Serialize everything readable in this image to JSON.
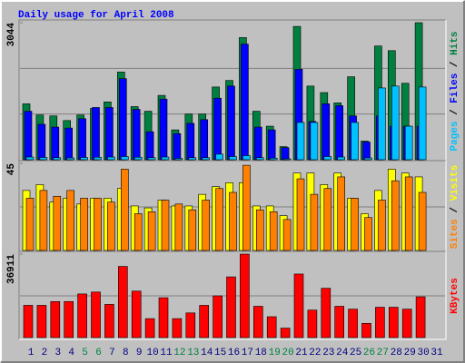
{
  "chart_data": [
    {
      "type": "bar",
      "title": "Daily usage for April 2008",
      "ylim": [
        0,
        3044
      ],
      "yticks": [
        3044
      ],
      "legend_separator": " / ",
      "series": [
        {
          "name": "Hits",
          "color": "#008040",
          "values": [
            1242,
            994,
            973,
            870,
            994,
            1139,
            1284,
            1947,
            1180,
            1077,
            1429,
            663,
            1015,
            1015,
            1615,
            1760,
            2713,
            1077,
            745,
            290,
            2961,
            1636,
            1491,
            1263,
            1843,
            414,
            2526,
            2423,
            1698,
            3044,
            null
          ]
        },
        {
          "name": "Files",
          "color": "#0000ff",
          "values": [
            1077,
            787,
            725,
            704,
            911,
            1160,
            1160,
            1801,
            1118,
            621,
            1346,
            580,
            808,
            890,
            1367,
            1636,
            2568,
            725,
            663,
            269,
            2009,
            849,
            1242,
            1201,
            973,
            393,
            973,
            745,
            745,
            745,
            null
          ]
        },
        {
          "name": "Pages",
          "color": "#00c0ff",
          "values": [
            60,
            50,
            45,
            40,
            50,
            55,
            60,
            70,
            55,
            45,
            60,
            30,
            45,
            45,
            124,
            70,
            90,
            45,
            35,
            20,
            828,
            828,
            70,
            60,
            828,
            40,
            1594,
            1636,
            745,
            1615,
            null
          ]
        }
      ]
    },
    {
      "type": "bar",
      "ylim": [
        0,
        45
      ],
      "yticks": [
        45
      ],
      "legend_separator": " / ",
      "series": [
        {
          "name": "Visits",
          "color": "#ffff00",
          "values": [
            31,
            34,
            25,
            27,
            24,
            27,
            27,
            32,
            23,
            22,
            26,
            23,
            23,
            29,
            33,
            35,
            35,
            23,
            23,
            18,
            40,
            40,
            34,
            40,
            27,
            19,
            31,
            42,
            40,
            38,
            null
          ]
        },
        {
          "name": "Sites",
          "color": "#ff8000",
          "values": [
            27,
            31,
            28,
            31,
            27,
            27,
            25,
            42,
            19,
            20,
            26,
            24,
            21,
            26,
            32,
            30,
            44,
            21,
            20,
            16,
            37,
            29,
            32,
            38,
            27,
            17,
            26,
            36,
            38,
            30,
            null
          ]
        }
      ]
    },
    {
      "type": "bar",
      "ylim": [
        0,
        36911
      ],
      "yticks": [
        36911
      ],
      "categories": [
        "1",
        "2",
        "3",
        "4",
        "5",
        "6",
        "7",
        "8",
        "9",
        "10",
        "11",
        "12",
        "13",
        "14",
        "15",
        "16",
        "17",
        "18",
        "19",
        "20",
        "21",
        "22",
        "23",
        "24",
        "25",
        "26",
        "27",
        "28",
        "29",
        "30",
        "31"
      ],
      "category_colors": [
        "#000080",
        "#000080",
        "#000080",
        "#000080",
        "#008040",
        "#008040",
        "#000080",
        "#000080",
        "#000080",
        "#000080",
        "#000080",
        "#008040",
        "#008040",
        "#000080",
        "#000080",
        "#000080",
        "#000080",
        "#000080",
        "#008040",
        "#008040",
        "#000080",
        "#000080",
        "#000080",
        "#000080",
        "#000080",
        "#008040",
        "#008040",
        "#000080",
        "#000080",
        "#000080",
        "#000080"
      ],
      "series": [
        {
          "name": "KBytes",
          "color": "#ff0000",
          "values": [
            14262,
            14262,
            15939,
            15939,
            19294,
            20133,
            14680,
            31458,
            20552,
            8389,
            17617,
            8389,
            10906,
            14262,
            18455,
            26844,
            36911,
            13842,
            9228,
            4194,
            28103,
            12164,
            21811,
            13842,
            12583,
            6292,
            13422,
            13422,
            12583,
            18036,
            null
          ]
        }
      ]
    }
  ]
}
